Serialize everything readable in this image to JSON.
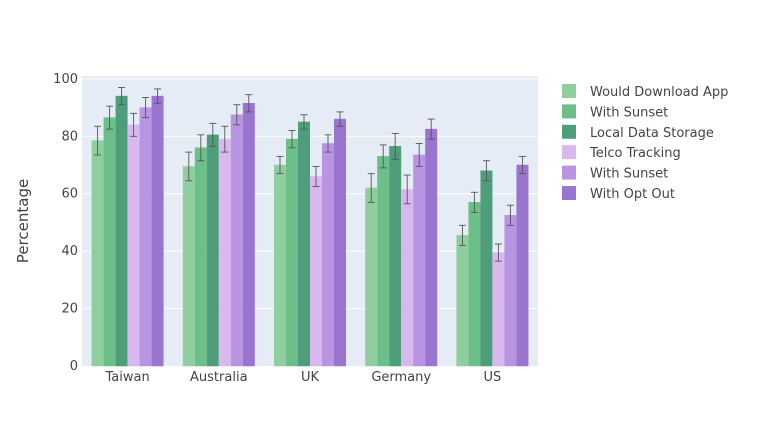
{
  "chart_data": {
    "type": "bar",
    "title": "",
    "xlabel": "",
    "ylabel": "Percentage",
    "ylim": [
      0,
      101
    ],
    "yticks": [
      0,
      20,
      40,
      60,
      80,
      100
    ],
    "grid": true,
    "legend_position": "right",
    "categories": [
      "Taiwan",
      "Australia",
      "UK",
      "Germany",
      "US"
    ],
    "series": [
      {
        "name": "Would Download App",
        "color": "#8fcf9f",
        "values": [
          78.5,
          69.5,
          70,
          62,
          45.5
        ],
        "error": [
          5,
          5,
          3,
          5,
          3.5
        ]
      },
      {
        "name": "With Sunset",
        "color": "#6cbf88",
        "values": [
          86.5,
          76,
          79,
          73,
          57
        ],
        "error": [
          4,
          4.5,
          3,
          4,
          3.5
        ]
      },
      {
        "name": "Local Data Storage",
        "color": "#4e9e7b",
        "values": [
          94,
          80.5,
          85,
          76.5,
          68
        ],
        "error": [
          3,
          4,
          2.5,
          4.5,
          3.5
        ]
      },
      {
        "name": "Telco Tracking",
        "color": "#d9b8ef",
        "values": [
          84,
          79,
          66,
          61.5,
          39.5
        ],
        "error": [
          4,
          4.5,
          3.5,
          5,
          3
        ]
      },
      {
        "name": "With Sunset",
        "color": "#b894e2",
        "values": [
          90,
          87.5,
          77.5,
          73.5,
          52.5
        ],
        "error": [
          3.5,
          3.5,
          3,
          4,
          3.5
        ]
      },
      {
        "name": "With Opt Out",
        "color": "#9a75cf",
        "values": [
          94,
          91.5,
          86,
          82.5,
          70
        ],
        "error": [
          2.5,
          3,
          2.5,
          3.5,
          3
        ]
      }
    ]
  }
}
